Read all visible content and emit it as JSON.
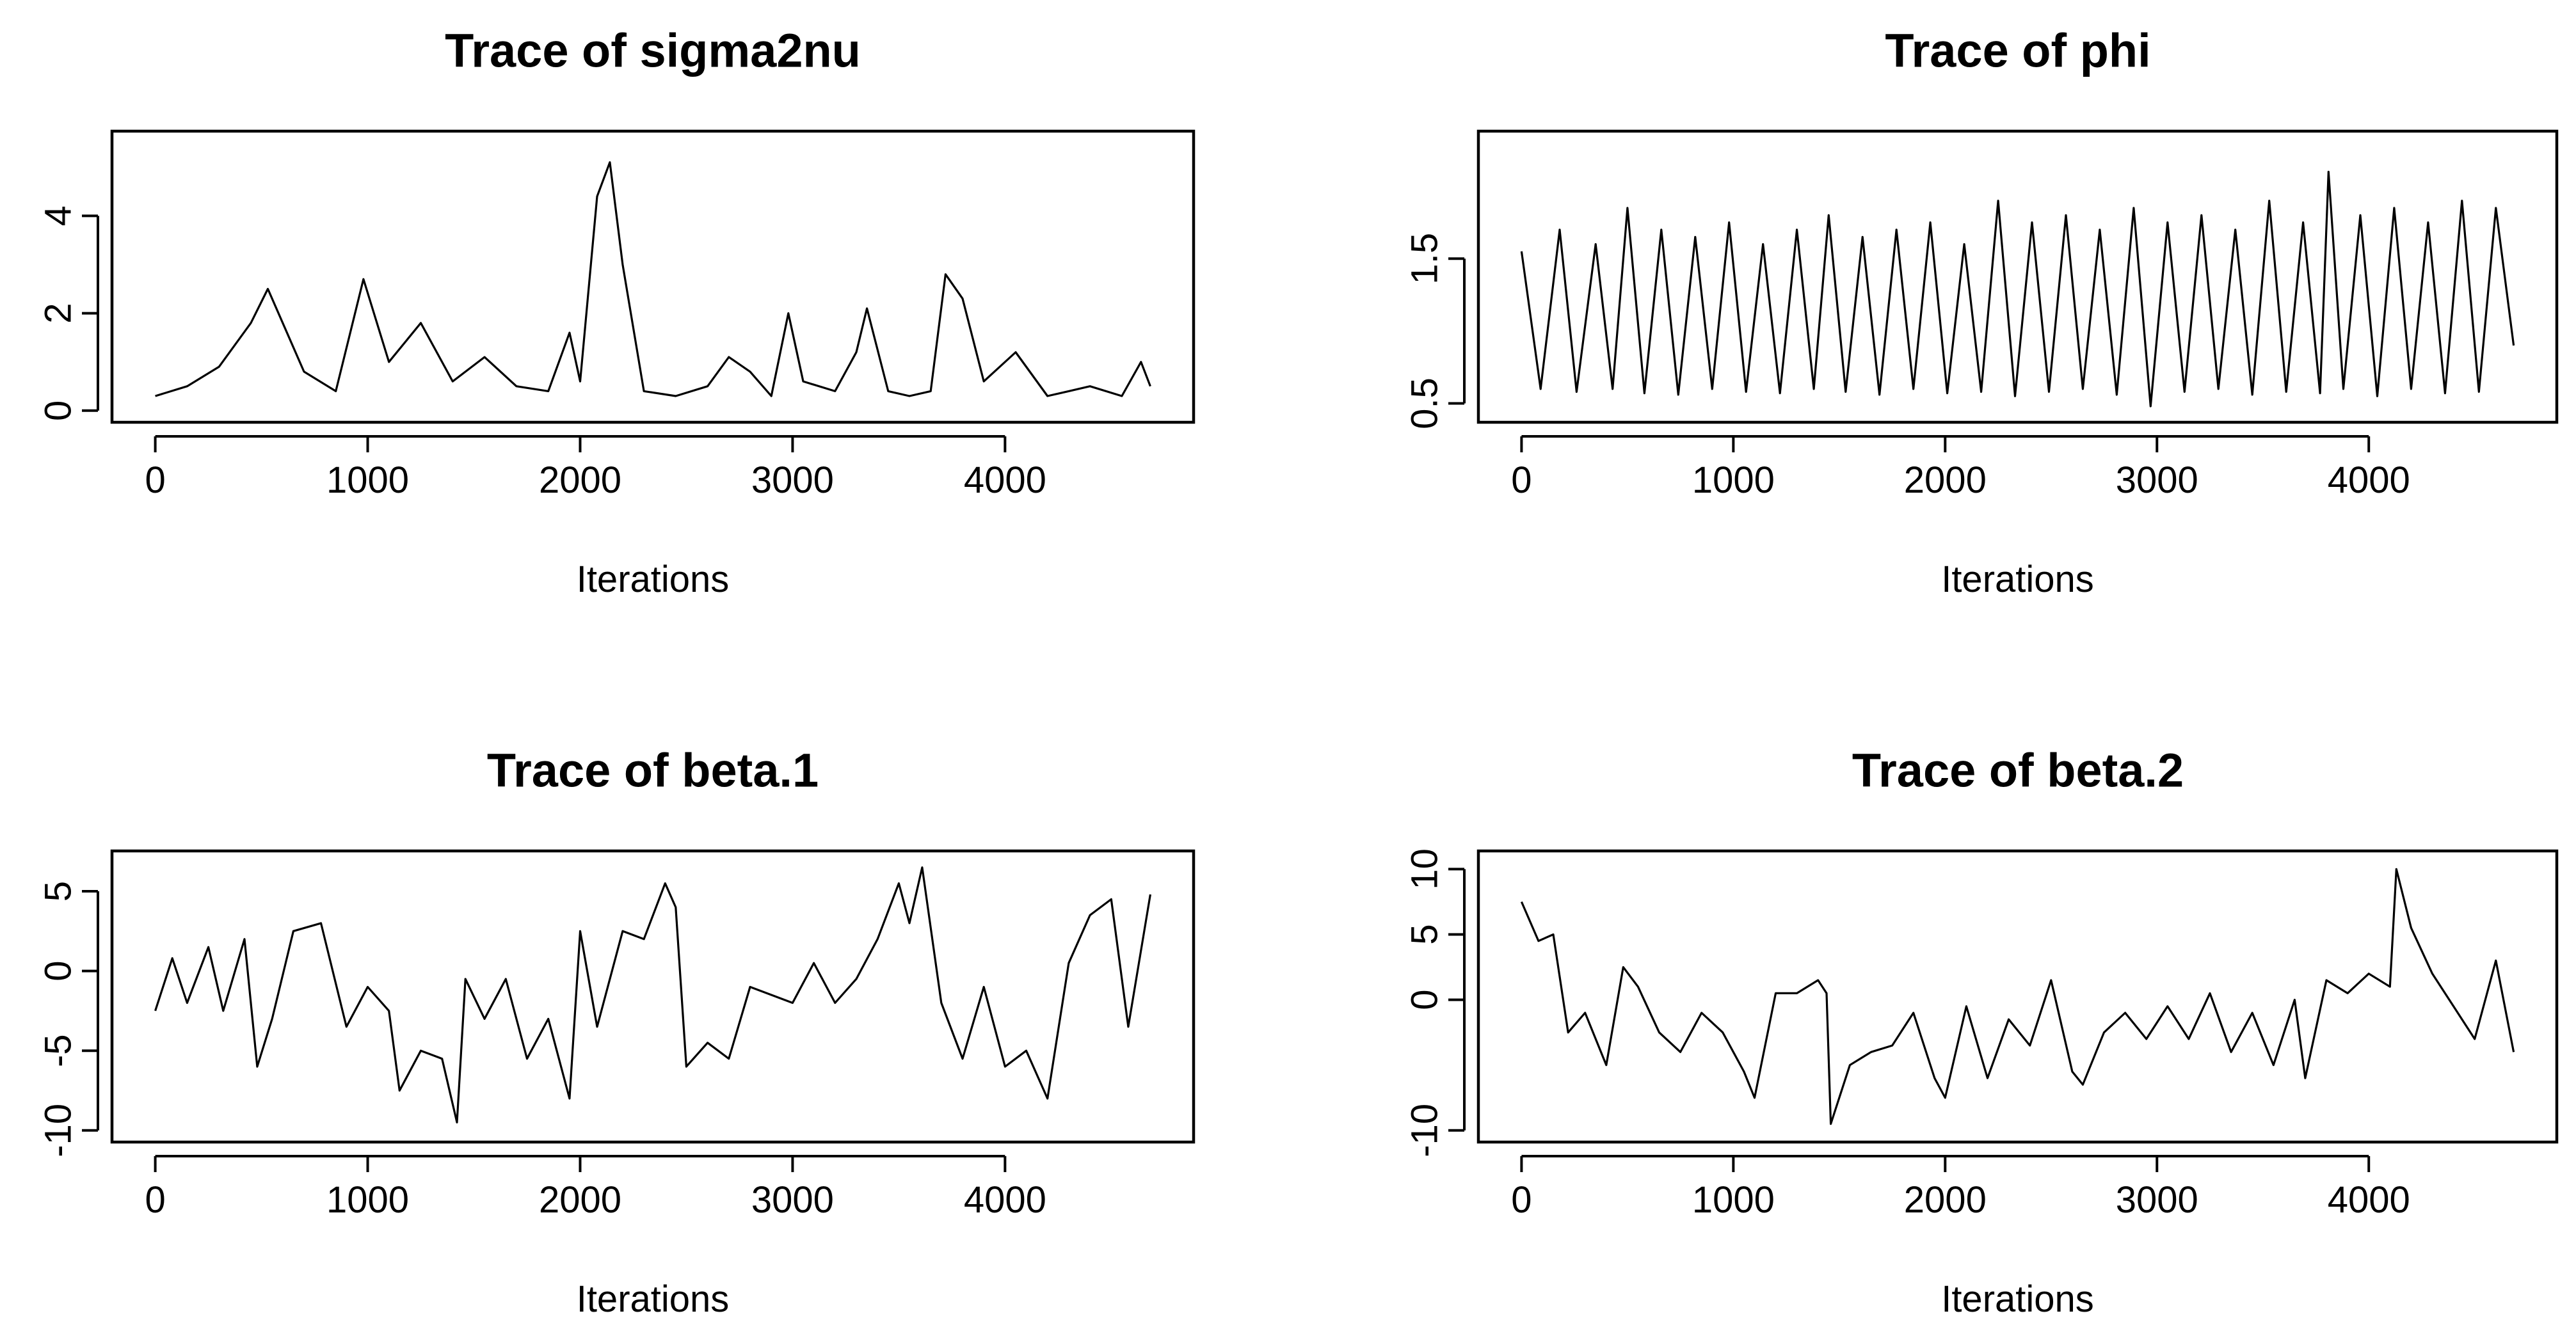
{
  "chart_data": [
    {
      "type": "line",
      "title": "Trace of sigma2nu",
      "xlabel": "Iterations",
      "ylabel": "",
      "xlim": [
        0,
        4684
      ],
      "ylim": [
        0,
        5.5
      ],
      "xticks": [
        "0",
        "1000",
        "2000",
        "3000",
        "4000"
      ],
      "yticks": [
        "0",
        "2",
        "4"
      ],
      "ytick_values": [
        0,
        2,
        4
      ],
      "grid": false,
      "series": [
        {
          "x": [
            0,
            150,
            300,
            450,
            530,
            700,
            850,
            980,
            1100,
            1250,
            1400,
            1550,
            1700,
            1850,
            1950,
            2000,
            2080,
            2140,
            2200,
            2300,
            2450,
            2600,
            2700,
            2800,
            2900,
            2980,
            3050,
            3200,
            3300,
            3350,
            3450,
            3550,
            3650,
            3720,
            3800,
            3900,
            4050,
            4200,
            4300,
            4400,
            4550,
            4640,
            4684
          ],
          "values": [
            0.3,
            0.5,
            0.9,
            1.8,
            2.5,
            0.8,
            0.4,
            2.7,
            1.0,
            1.8,
            0.6,
            1.1,
            0.5,
            0.4,
            1.6,
            0.6,
            4.4,
            5.1,
            3.0,
            0.4,
            0.3,
            0.5,
            1.1,
            0.8,
            0.3,
            2.0,
            0.6,
            0.4,
            1.2,
            2.1,
            0.4,
            0.3,
            0.4,
            2.8,
            2.3,
            0.6,
            1.2,
            0.3,
            0.4,
            0.5,
            0.3,
            1.0,
            0.5
          ]
        }
      ]
    },
    {
      "type": "line",
      "title": "Trace of phi",
      "xlabel": "Iterations",
      "ylabel": "",
      "xlim": [
        0,
        4684
      ],
      "ylim": [
        0.45,
        2.3
      ],
      "xticks": [
        "0",
        "1000",
        "2000",
        "3000",
        "4000"
      ],
      "yticks": [
        "0.5",
        "1.5"
      ],
      "ytick_values": [
        0.5,
        1.5
      ],
      "grid": false,
      "series": [
        {
          "x": [
            0,
            90,
            180,
            260,
            350,
            430,
            500,
            580,
            660,
            740,
            820,
            900,
            980,
            1060,
            1140,
            1220,
            1300,
            1380,
            1450,
            1530,
            1610,
            1690,
            1770,
            1850,
            1930,
            2010,
            2090,
            2170,
            2250,
            2330,
            2410,
            2490,
            2570,
            2650,
            2730,
            2810,
            2890,
            2970,
            3050,
            3130,
            3210,
            3290,
            3370,
            3450,
            3530,
            3610,
            3690,
            3770,
            3810,
            3880,
            3960,
            4040,
            4120,
            4200,
            4280,
            4360,
            4440,
            4520,
            4600,
            4684
          ],
          "values": [
            1.55,
            0.6,
            1.7,
            0.58,
            1.6,
            0.6,
            1.85,
            0.57,
            1.7,
            0.56,
            1.65,
            0.6,
            1.75,
            0.58,
            1.6,
            0.57,
            1.7,
            0.6,
            1.8,
            0.58,
            1.65,
            0.56,
            1.7,
            0.6,
            1.75,
            0.57,
            1.6,
            0.58,
            1.9,
            0.55,
            1.75,
            0.58,
            1.8,
            0.6,
            1.7,
            0.56,
            1.85,
            0.48,
            1.75,
            0.58,
            1.8,
            0.6,
            1.7,
            0.56,
            1.9,
            0.58,
            1.75,
            0.57,
            2.1,
            0.6,
            1.8,
            0.55,
            1.85,
            0.6,
            1.75,
            0.57,
            1.9,
            0.58,
            1.85,
            0.9
          ]
        }
      ]
    },
    {
      "type": "line",
      "title": "Trace of beta.1",
      "xlabel": "Iterations",
      "ylabel": "",
      "xlim": [
        0,
        4684
      ],
      "ylim": [
        -10,
        6.8
      ],
      "xticks": [
        "0",
        "1000",
        "2000",
        "3000",
        "4000"
      ],
      "yticks": [
        "-10",
        "-5",
        "0",
        "5"
      ],
      "ytick_values": [
        -10,
        -5,
        0,
        5
      ],
      "grid": false,
      "series": [
        {
          "x": [
            0,
            80,
            150,
            250,
            320,
            420,
            480,
            550,
            650,
            780,
            900,
            1000,
            1100,
            1150,
            1250,
            1350,
            1420,
            1460,
            1550,
            1650,
            1750,
            1850,
            1950,
            2000,
            2080,
            2200,
            2300,
            2400,
            2450,
            2500,
            2600,
            2700,
            2800,
            2900,
            3000,
            3100,
            3200,
            3300,
            3400,
            3500,
            3550,
            3610,
            3700,
            3800,
            3900,
            4000,
            4100,
            4200,
            4300,
            4400,
            4500,
            4580,
            4684
          ],
          "values": [
            -2.5,
            0.8,
            -2.0,
            1.5,
            -2.5,
            2.0,
            -6.0,
            -3.0,
            2.5,
            3.0,
            -3.5,
            -1.0,
            -2.5,
            -7.5,
            -5.0,
            -5.5,
            -9.5,
            -0.5,
            -3.0,
            -0.5,
            -5.5,
            -3.0,
            -8.0,
            2.5,
            -3.5,
            2.5,
            2.0,
            5.5,
            4.0,
            -6.0,
            -4.5,
            -5.5,
            -1.0,
            -1.5,
            -2.0,
            0.5,
            -2.0,
            -0.5,
            2.0,
            5.5,
            3.0,
            6.5,
            -2.0,
            -5.5,
            -1.0,
            -6.0,
            -5.0,
            -8.0,
            0.5,
            3.5,
            4.5,
            -3.5,
            4.8
          ]
        }
      ]
    },
    {
      "type": "line",
      "title": "Trace of beta.2",
      "xlabel": "Iterations",
      "ylabel": "",
      "xlim": [
        0,
        4684
      ],
      "ylim": [
        -10,
        10.5
      ],
      "xticks": [
        "0",
        "1000",
        "2000",
        "3000",
        "4000"
      ],
      "yticks": [
        "-10",
        "0",
        "5",
        "10"
      ],
      "ytick_values": [
        -10,
        0,
        5,
        10
      ],
      "grid": false,
      "series": [
        {
          "x": [
            0,
            80,
            150,
            220,
            300,
            400,
            480,
            550,
            650,
            750,
            850,
            950,
            1050,
            1100,
            1200,
            1300,
            1400,
            1440,
            1460,
            1550,
            1650,
            1750,
            1850,
            1950,
            2000,
            2100,
            2200,
            2300,
            2400,
            2500,
            2600,
            2650,
            2750,
            2850,
            2950,
            3050,
            3150,
            3250,
            3350,
            3450,
            3550,
            3650,
            3700,
            3800,
            3900,
            4000,
            4100,
            4130,
            4200,
            4300,
            4400,
            4500,
            4600,
            4684
          ],
          "values": [
            7.5,
            4.5,
            5.0,
            -2.5,
            -1.0,
            -5.0,
            2.5,
            1.0,
            -2.5,
            -4.0,
            -1.0,
            -2.5,
            -5.5,
            -7.5,
            0.5,
            0.5,
            1.5,
            0.5,
            -9.5,
            -5.0,
            -4.0,
            -3.5,
            -1.0,
            -6.0,
            -7.5,
            -0.5,
            -6.0,
            -1.5,
            -3.5,
            1.5,
            -5.5,
            -6.5,
            -2.5,
            -1.0,
            -3.0,
            -0.5,
            -3.0,
            0.5,
            -4.0,
            -1.0,
            -5.0,
            0.0,
            -6.0,
            1.5,
            0.5,
            2.0,
            1.0,
            10.0,
            5.5,
            2.0,
            -0.5,
            -3.0,
            3.0,
            -4.0
          ]
        }
      ]
    }
  ]
}
